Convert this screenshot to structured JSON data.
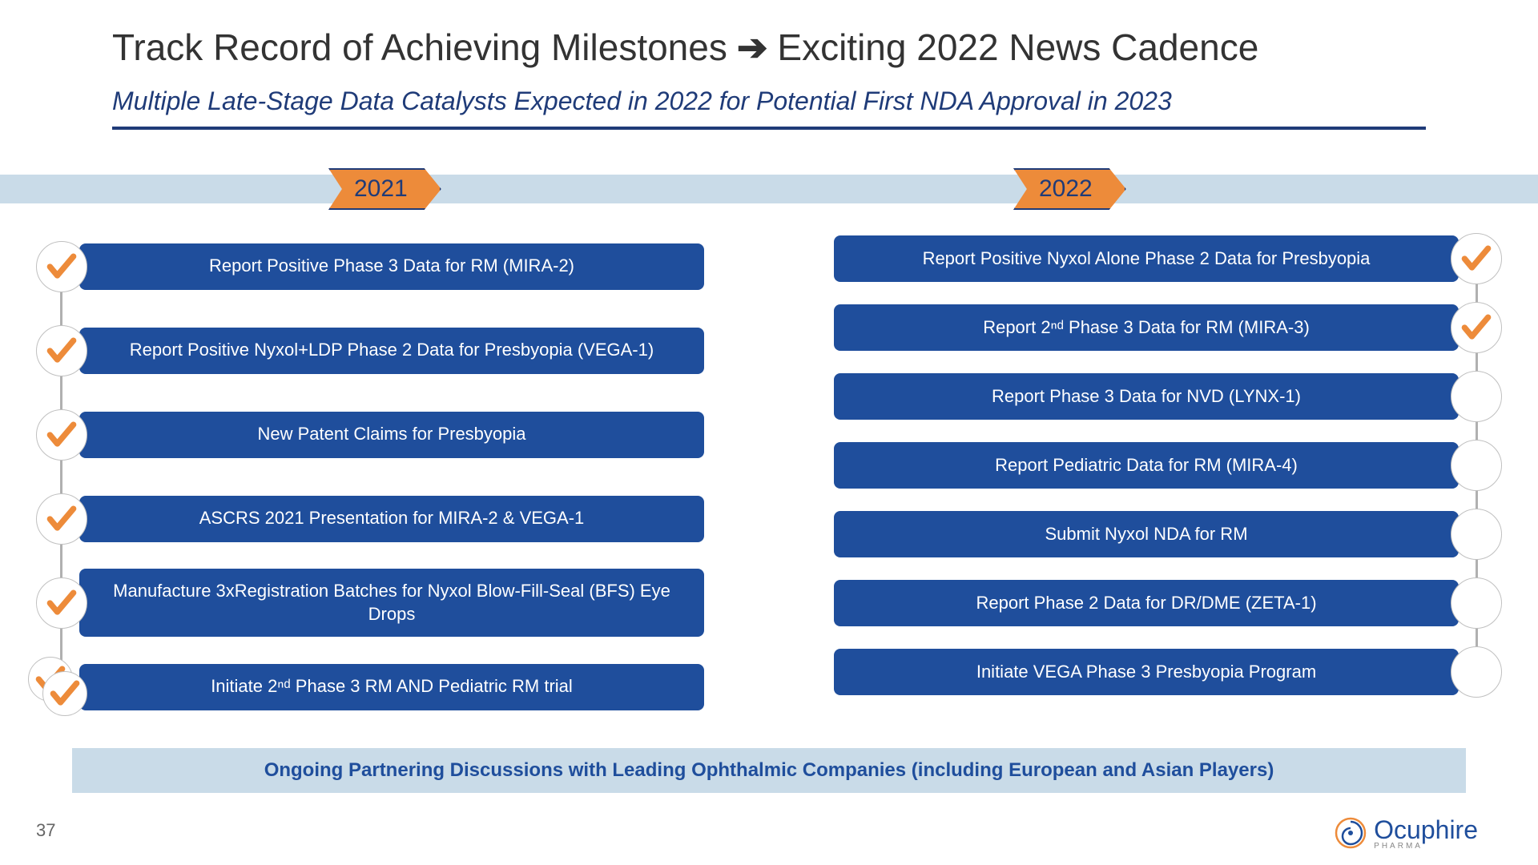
{
  "title_part1": "Track Record of Achieving Milestones",
  "title_part2": "Exciting 2022 News Cadence",
  "subtitle": "Multiple Late-Stage Data Catalysts Expected in 2022 for Potential First NDA Approval in 2023",
  "year_left": "2021",
  "year_right": "2022",
  "colors": {
    "pill_bg": "#1f4e9c",
    "pill_text": "#ffffff",
    "arrow_bg": "#ed8b3a",
    "band_bg": "#c9dbe8",
    "check_color": "#ed8b3a",
    "title_color": "#333333",
    "subtitle_color": "#1f3b78"
  },
  "left_items": [
    {
      "text": "Report Positive Phase 3 Data for RM (MIRA-2)",
      "checked": true,
      "double": false
    },
    {
      "text": "Report Positive Nyxol+LDP Phase 2 Data for Presbyopia (VEGA-1)",
      "checked": true,
      "double": false
    },
    {
      "text": "New Patent Claims for Presbyopia",
      "checked": true,
      "double": false
    },
    {
      "text": "ASCRS 2021 Presentation for MIRA-2 & VEGA-1",
      "checked": true,
      "double": false
    },
    {
      "text": "Manufacture 3xRegistration Batches for Nyxol Blow-Fill-Seal (BFS) Eye Drops",
      "checked": true,
      "double": false
    },
    {
      "text": "Initiate 2ⁿᵈ Phase 3 RM AND Pediatric RM trial",
      "checked": true,
      "double": true
    }
  ],
  "right_items": [
    {
      "text": "Report Positive Nyxol Alone Phase 2 Data for Presbyopia",
      "checked": true
    },
    {
      "text": "Report 2ⁿᵈ Phase 3 Data for RM (MIRA-3)",
      "checked": true
    },
    {
      "text": "Report Phase 3 Data for NVD (LYNX-1)",
      "checked": false
    },
    {
      "text": "Report Pediatric Data for RM (MIRA-4)",
      "checked": false
    },
    {
      "text": "Submit Nyxol NDA for RM",
      "checked": false
    },
    {
      "text": "Report Phase 2 Data for DR/DME (ZETA-1)",
      "checked": false
    },
    {
      "text": "Initiate VEGA Phase 3 Presbyopia Program",
      "checked": false
    }
  ],
  "footer_text": "Ongoing Partnering Discussions with Leading Ophthalmic Companies (including European and Asian Players)",
  "page_number": "37",
  "logo_text": "Ocuphire",
  "logo_sub": "PHARMA",
  "layout": {
    "left_row_height": 105,
    "right_row_height": 86,
    "left_connector_height": 560,
    "right_connector_height": 540
  }
}
